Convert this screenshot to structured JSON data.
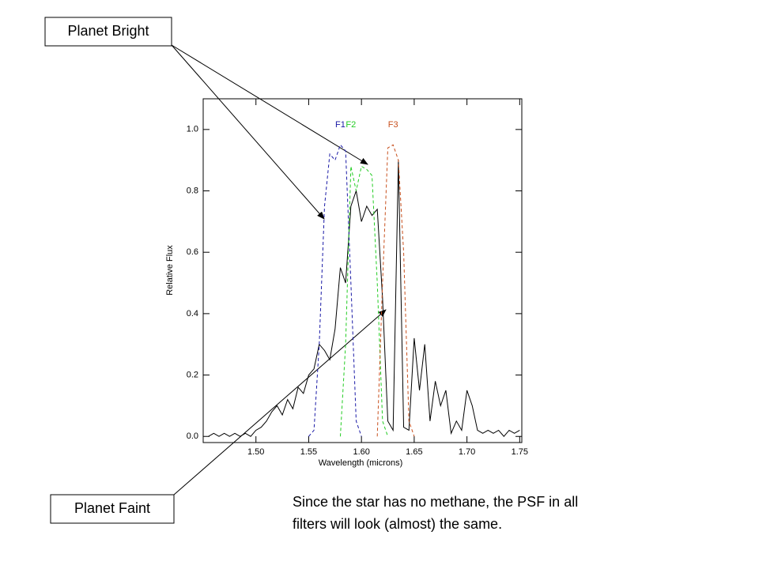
{
  "chart_data": {
    "type": "line",
    "xlabel": "Wavelength (microns)",
    "ylabel": "Relative Flux",
    "annotations": [
      "Planet Bright",
      "Planet Faint"
    ],
    "caption": [
      "Since the star has no methane, the PSF in all",
      "filters will look (almost) the same."
    ],
    "x": [
      1.455,
      1.46,
      1.465,
      1.47,
      1.475,
      1.48,
      1.485,
      1.49,
      1.495,
      1.5,
      1.505,
      1.51,
      1.515,
      1.52,
      1.525,
      1.53,
      1.535,
      1.54,
      1.545,
      1.55,
      1.555,
      1.56,
      1.565,
      1.57,
      1.575,
      1.58,
      1.585,
      1.59,
      1.595,
      1.6,
      1.605,
      1.61,
      1.615,
      1.62,
      1.625,
      1.63,
      1.635,
      1.64,
      1.645,
      1.65,
      1.655,
      1.66,
      1.665,
      1.67,
      1.675,
      1.68,
      1.685,
      1.69,
      1.695,
      1.7,
      1.705,
      1.71,
      1.715,
      1.72,
      1.725,
      1.73,
      1.735,
      1.74,
      1.745,
      1.75
    ],
    "series": [
      {
        "color": "#000000",
        "dashed": false,
        "values": [
          0.0,
          0.01,
          0.0,
          0.01,
          0.0,
          0.01,
          0.0,
          0.01,
          0.0,
          0.02,
          0.03,
          0.05,
          0.08,
          0.1,
          0.07,
          0.12,
          0.09,
          0.16,
          0.14,
          0.2,
          0.22,
          0.3,
          0.28,
          0.25,
          0.35,
          0.55,
          0.5,
          0.75,
          0.8,
          0.7,
          0.75,
          0.72,
          0.74,
          0.45,
          0.05,
          0.02,
          0.9,
          0.03,
          0.02,
          0.32,
          0.15,
          0.3,
          0.05,
          0.18,
          0.1,
          0.15,
          0.01,
          0.05,
          0.02,
          0.15,
          0.1,
          0.02,
          0.01,
          0.02,
          0.01,
          0.02,
          0.0,
          0.02,
          0.01,
          0.02
        ]
      },
      {
        "name": "F1",
        "color": "#1a1aa6",
        "dashed": true,
        "values": [
          null,
          null,
          null,
          null,
          null,
          null,
          null,
          null,
          null,
          null,
          null,
          null,
          null,
          null,
          null,
          null,
          null,
          null,
          null,
          0.0,
          0.02,
          0.3,
          0.75,
          0.92,
          0.9,
          0.95,
          0.93,
          0.5,
          0.05,
          0.0,
          null,
          null,
          null,
          null,
          null,
          null,
          null,
          null,
          null,
          null,
          null,
          null,
          null,
          null,
          null,
          null,
          null,
          null,
          null,
          null,
          null,
          null,
          null,
          null,
          null,
          null,
          null,
          null,
          null,
          null
        ]
      },
      {
        "name": "F2",
        "color": "#22cc22",
        "dashed": true,
        "values": [
          null,
          null,
          null,
          null,
          null,
          null,
          null,
          null,
          null,
          null,
          null,
          null,
          null,
          null,
          null,
          null,
          null,
          null,
          null,
          null,
          null,
          null,
          null,
          null,
          null,
          0.0,
          0.3,
          0.88,
          0.8,
          0.88,
          0.87,
          0.85,
          0.5,
          0.05,
          0.0,
          null,
          null,
          null,
          null,
          null,
          null,
          null,
          null,
          null,
          null,
          null,
          null,
          null,
          null,
          null,
          null,
          null,
          null,
          null,
          null,
          null,
          null,
          null,
          null,
          null
        ]
      },
      {
        "name": "F3",
        "color": "#c8501e",
        "dashed": true,
        "values": [
          null,
          null,
          null,
          null,
          null,
          null,
          null,
          null,
          null,
          null,
          null,
          null,
          null,
          null,
          null,
          null,
          null,
          null,
          null,
          null,
          null,
          null,
          null,
          null,
          null,
          null,
          null,
          null,
          null,
          null,
          null,
          null,
          0.0,
          0.5,
          0.94,
          0.95,
          0.9,
          0.6,
          0.05,
          0.0,
          null,
          null,
          null,
          null,
          null,
          null,
          null,
          null,
          null,
          null,
          null,
          null,
          null,
          null,
          null,
          null,
          null,
          null,
          null,
          null
        ]
      }
    ],
    "xlim": [
      1.45,
      1.752
    ],
    "ylim": [
      -0.02,
      1.1
    ],
    "xticks": [
      {
        "value": 1.5,
        "label": "1.50"
      },
      {
        "value": 1.55,
        "label": "1.55"
      },
      {
        "value": 1.6,
        "label": "1.60"
      },
      {
        "value": 1.65,
        "label": "1.65"
      },
      {
        "value": 1.7,
        "label": "1.70"
      },
      {
        "value": 1.75,
        "label": "1.75"
      }
    ],
    "yticks": [
      {
        "value": 0,
        "label": "0.0"
      },
      {
        "value": 0.2,
        "label": "0.2"
      },
      {
        "value": 0.4,
        "label": "0.4"
      },
      {
        "value": 0.6,
        "label": "0.6"
      },
      {
        "value": 0.8,
        "label": "0.8"
      },
      {
        "value": 1,
        "label": "1.0"
      }
    ]
  }
}
